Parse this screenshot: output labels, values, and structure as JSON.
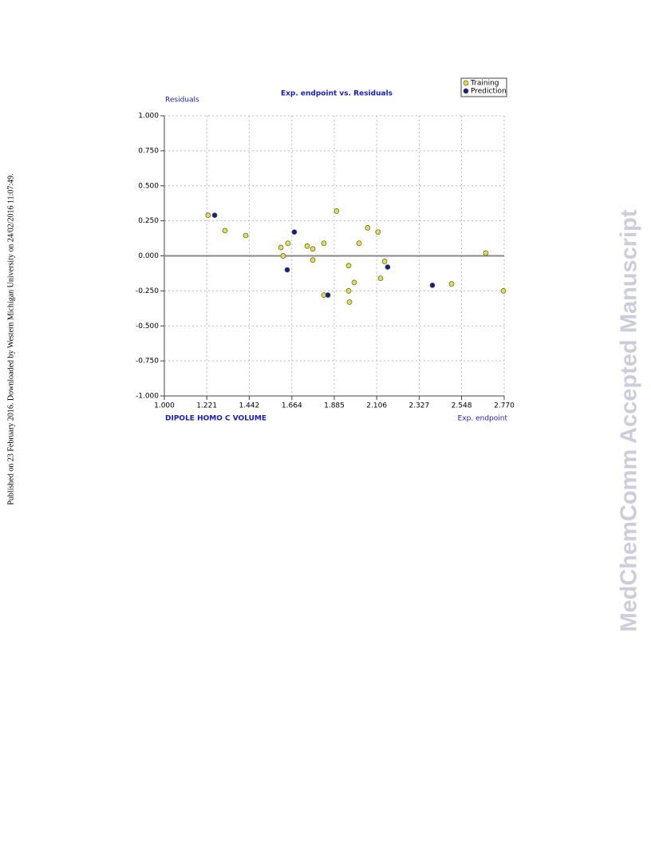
{
  "page": {
    "side_note": "Published on 23 February 2016. Downloaded by Western Michigan University on 24/02/2016 11:07:49.",
    "watermark": "MedChemComm Accepted Manuscript"
  },
  "chart_data": {
    "type": "scatter",
    "title": "Exp. endpoint vs. Residuals",
    "ylabel": "Residuals",
    "xlabel": "Exp. endpoint",
    "annotation": "DIPOLE HOMO C VOLUME",
    "xlim": [
      1.0,
      2.77
    ],
    "ylim": [
      -1.0,
      1.0
    ],
    "xticks": [
      {
        "value": 1.0,
        "label": "1.000"
      },
      1.221,
      1.442,
      1.664,
      1.885,
      2.106,
      2.327,
      2.548,
      {
        "value": 2.77,
        "label": "2.770"
      }
    ],
    "yticks": [
      {
        "value": -1.0,
        "label": "-1.000"
      },
      {
        "value": -0.75,
        "label": "-0.750"
      },
      {
        "value": -0.5,
        "label": "-0.500"
      },
      {
        "value": -0.25,
        "label": "-0.250"
      },
      {
        "value": 0,
        "label": "0.000"
      },
      {
        "value": 0.25,
        "label": "0.250"
      },
      {
        "value": 0.5,
        "label": "0.500"
      },
      {
        "value": 0.75,
        "label": "0.750"
      },
      {
        "value": 1.0,
        "label": "1.000"
      }
    ],
    "grid": true,
    "zero_line": true,
    "legend": "top-right",
    "series": [
      {
        "name": "Training",
        "color": "#e8e03a",
        "x": [
          1.228,
          1.316,
          1.424,
          1.607,
          1.619,
          1.644,
          1.744,
          1.773,
          1.773,
          1.831,
          1.831,
          1.897,
          1.96,
          1.96,
          1.964,
          1.989,
          2.014,
          2.059,
          2.113,
          2.126,
          2.147,
          2.496,
          2.674,
          2.766
        ],
        "values": [
          0.29,
          0.18,
          0.145,
          0.06,
          0.0,
          0.09,
          0.07,
          0.05,
          -0.03,
          0.09,
          -0.28,
          0.32,
          -0.07,
          -0.25,
          -0.33,
          -0.19,
          0.09,
          0.2,
          0.17,
          -0.16,
          -0.04,
          -0.2,
          0.02,
          -0.25
        ]
      },
      {
        "name": "Prediction",
        "color": "#1a1a8c",
        "x": [
          1.262,
          1.677,
          1.64,
          1.852,
          2.163,
          2.396
        ],
        "values": [
          0.29,
          0.17,
          -0.1,
          -0.28,
          -0.08,
          -0.21
        ]
      }
    ]
  }
}
